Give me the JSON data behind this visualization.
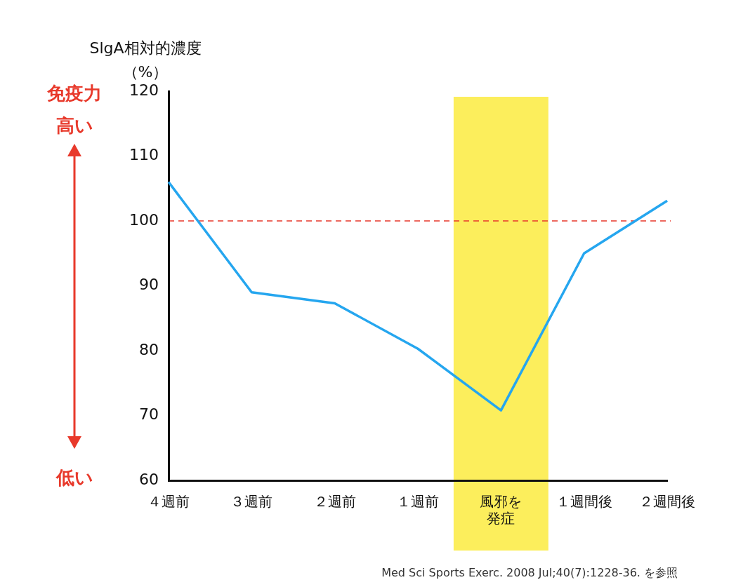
{
  "chart_data": {
    "type": "line",
    "ylabel": "SlgA相対的濃度（%）",
    "categories": [
      "４週前",
      "３週前",
      "２週前",
      "１週前",
      "風邪を発症",
      "１週間後",
      "２週間後"
    ],
    "series": [
      {
        "color": "#25a6ef",
        "values": [
          106,
          89,
          87.3,
          80.3,
          70.8,
          95,
          103.1
        ]
      }
    ],
    "ylim": [
      60,
      120
    ],
    "yticks": [
      60,
      70,
      80,
      90,
      100,
      110,
      120
    ],
    "grid": false,
    "legend": false,
    "marker": "none",
    "line_style": "solid",
    "ref_lines": [
      {
        "axis": "y",
        "value": 100,
        "color": "#e8392b",
        "line_style": "dashed"
      }
    ],
    "bands": [
      {
        "axis": "x",
        "from": "風邪を発症",
        "to": "風邪を発症",
        "color": "#fcee5c"
      }
    ],
    "annotations": [
      "免疫力",
      "高い",
      "低い",
      "Med Sci Sports Exerc. 2008 Jul;40(7):1228-36. を参照"
    ]
  }
}
